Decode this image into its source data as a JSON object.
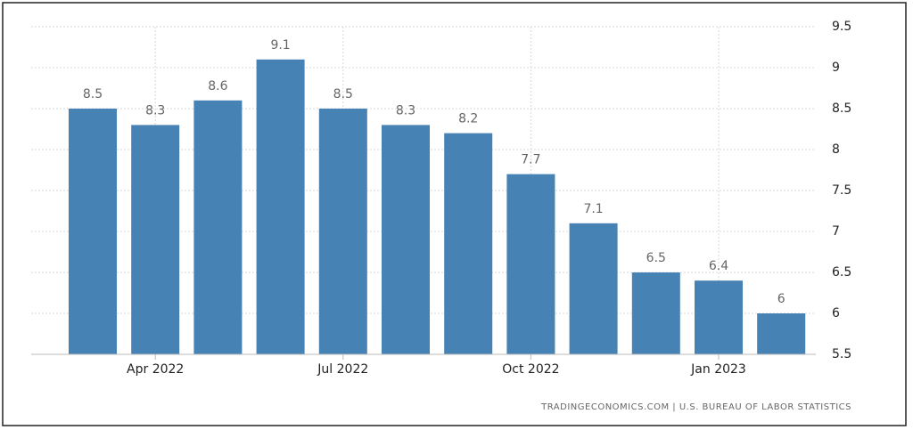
{
  "chart_data": {
    "type": "bar",
    "categories": [
      null,
      "Apr 2022",
      null,
      null,
      "Jul 2022",
      null,
      null,
      "Oct 2022",
      null,
      null,
      "Jan 2023",
      null
    ],
    "values": [
      8.5,
      8.3,
      8.6,
      9.1,
      8.5,
      8.3,
      8.2,
      7.7,
      7.1,
      6.5,
      6.4,
      6
    ],
    "color": "#4682b4",
    "ylim": [
      5.5,
      9.5
    ],
    "yticks": [
      5.5,
      6,
      6.5,
      7,
      7.5,
      8,
      8.5,
      9,
      9.5
    ],
    "grid": true,
    "source": "TRADINGECONOMICS.COM | U.S. BUREAU OF LABOR STATISTICS"
  }
}
